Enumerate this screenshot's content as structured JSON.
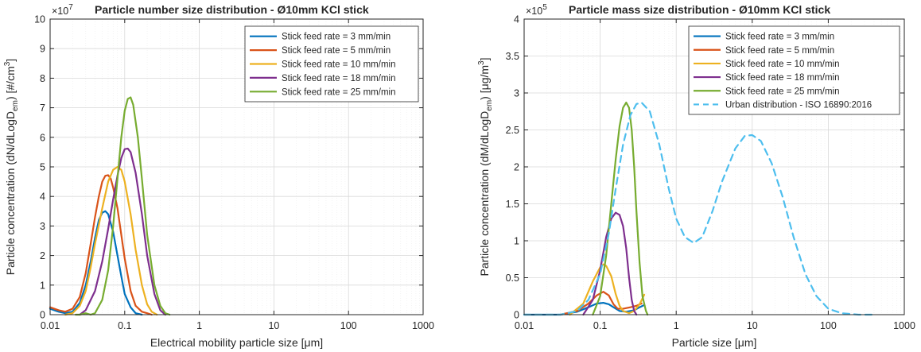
{
  "chart_data": [
    {
      "type": "line",
      "title": "Particle number size distribution - Ø10mm KCl stick",
      "xlabel": "Electrical mobility particle size [μm]",
      "ylabel": "Particle concentration (dN/dLogD",
      "ylabel_sub": "em",
      "ylabel_tail": ") [#/cm",
      "ylabel_sup": "3",
      "ylabel_end": "]",
      "xscale": "log",
      "xlim": [
        0.01,
        1000
      ],
      "ylim": [
        0,
        10
      ],
      "y_exponent_base": "×10",
      "y_exponent": "7",
      "x_ticks": [
        "0.01",
        "0.1",
        "1",
        "10",
        "100",
        "1000"
      ],
      "y_ticks": [
        "0",
        "1",
        "2",
        "3",
        "4",
        "5",
        "6",
        "7",
        "8",
        "9",
        "10"
      ],
      "grid": true,
      "legend_position": "top-right",
      "series": [
        {
          "name": "Stick feed rate = 3 mm/min",
          "color": "#0072BD",
          "points": [
            [
              0.01,
              0.2
            ],
            [
              0.013,
              0.1
            ],
            [
              0.016,
              0.05
            ],
            [
              0.02,
              0.1
            ],
            [
              0.025,
              0.4
            ],
            [
              0.03,
              1.0
            ],
            [
              0.035,
              1.8
            ],
            [
              0.04,
              2.6
            ],
            [
              0.045,
              3.2
            ],
            [
              0.05,
              3.45
            ],
            [
              0.055,
              3.5
            ],
            [
              0.06,
              3.4
            ],
            [
              0.07,
              2.8
            ],
            [
              0.08,
              2.0
            ],
            [
              0.09,
              1.3
            ],
            [
              0.1,
              0.7
            ],
            [
              0.12,
              0.25
            ],
            [
              0.14,
              0.05
            ],
            [
              0.17,
              0.0
            ]
          ]
        },
        {
          "name": "Stick feed rate = 5 mm/min",
          "color": "#D95319",
          "points": [
            [
              0.01,
              0.25
            ],
            [
              0.013,
              0.15
            ],
            [
              0.016,
              0.1
            ],
            [
              0.02,
              0.2
            ],
            [
              0.025,
              0.6
            ],
            [
              0.03,
              1.4
            ],
            [
              0.035,
              2.4
            ],
            [
              0.04,
              3.3
            ],
            [
              0.045,
              4.0
            ],
            [
              0.05,
              4.5
            ],
            [
              0.055,
              4.7
            ],
            [
              0.06,
              4.72
            ],
            [
              0.065,
              4.6
            ],
            [
              0.07,
              4.3
            ],
            [
              0.08,
              3.6
            ],
            [
              0.09,
              2.7
            ],
            [
              0.1,
              1.9
            ],
            [
              0.12,
              0.8
            ],
            [
              0.14,
              0.3
            ],
            [
              0.17,
              0.1
            ],
            [
              0.2,
              0.05
            ],
            [
              0.23,
              0.0
            ]
          ]
        },
        {
          "name": "Stick feed rate = 10 mm/min",
          "color": "#EDB120",
          "points": [
            [
              0.016,
              0.0
            ],
            [
              0.02,
              0.05
            ],
            [
              0.025,
              0.3
            ],
            [
              0.03,
              0.8
            ],
            [
              0.035,
              1.6
            ],
            [
              0.04,
              2.4
            ],
            [
              0.05,
              3.6
            ],
            [
              0.06,
              4.5
            ],
            [
              0.07,
              4.9
            ],
            [
              0.08,
              5.0
            ],
            [
              0.09,
              4.9
            ],
            [
              0.1,
              4.5
            ],
            [
              0.12,
              3.4
            ],
            [
              0.14,
              2.2
            ],
            [
              0.17,
              1.0
            ],
            [
              0.2,
              0.35
            ],
            [
              0.23,
              0.1
            ],
            [
              0.27,
              0.0
            ]
          ]
        },
        {
          "name": "Stick feed rate = 18 mm/min",
          "color": "#7E2F8E",
          "points": [
            [
              0.025,
              0.0
            ],
            [
              0.03,
              0.15
            ],
            [
              0.04,
              0.8
            ],
            [
              0.05,
              1.8
            ],
            [
              0.06,
              2.9
            ],
            [
              0.07,
              3.9
            ],
            [
              0.08,
              4.7
            ],
            [
              0.09,
              5.3
            ],
            [
              0.1,
              5.6
            ],
            [
              0.11,
              5.62
            ],
            [
              0.12,
              5.5
            ],
            [
              0.14,
              4.8
            ],
            [
              0.17,
              3.4
            ],
            [
              0.2,
              2.0
            ],
            [
              0.25,
              0.7
            ],
            [
              0.3,
              0.15
            ],
            [
              0.35,
              0.0
            ]
          ]
        },
        {
          "name": "Stick feed rate = 25 mm/min",
          "color": "#77AC30",
          "points": [
            [
              0.022,
              0.0
            ],
            [
              0.025,
              0.0
            ],
            [
              0.03,
              0.05
            ],
            [
              0.035,
              0.0
            ],
            [
              0.04,
              0.05
            ],
            [
              0.05,
              0.5
            ],
            [
              0.06,
              1.5
            ],
            [
              0.07,
              3.0
            ],
            [
              0.08,
              4.6
            ],
            [
              0.09,
              6.0
            ],
            [
              0.1,
              6.9
            ],
            [
              0.11,
              7.3
            ],
            [
              0.12,
              7.35
            ],
            [
              0.13,
              7.1
            ],
            [
              0.15,
              6.0
            ],
            [
              0.17,
              4.6
            ],
            [
              0.2,
              2.7
            ],
            [
              0.25,
              1.0
            ],
            [
              0.3,
              0.3
            ],
            [
              0.35,
              0.05
            ],
            [
              0.4,
              0.0
            ]
          ]
        }
      ]
    },
    {
      "type": "line",
      "title": "Particle mass size distribution - Ø10mm KCl stick",
      "xlabel": "Particle size [μm]",
      "ylabel": "Particle concentration (dM/dLogD",
      "ylabel_sub": "em",
      "ylabel_tail": ") [μg/m",
      "ylabel_sup": "3",
      "ylabel_end": "]",
      "xscale": "log",
      "xlim": [
        0.01,
        1000
      ],
      "ylim": [
        0,
        4
      ],
      "y_exponent_base": "×10",
      "y_exponent": "5",
      "x_ticks": [
        "0.01",
        "0.1",
        "1",
        "10",
        "100",
        "1000"
      ],
      "y_ticks": [
        "0",
        "0.5",
        "1",
        "1.5",
        "2",
        "2.5",
        "3",
        "3.5",
        "4"
      ],
      "grid": true,
      "legend_position": "top-right",
      "series": [
        {
          "name": "Stick feed rate = 3 mm/min",
          "color": "#0072BD",
          "points": [
            [
              0.01,
              0.0
            ],
            [
              0.03,
              0.0
            ],
            [
              0.05,
              0.04
            ],
            [
              0.07,
              0.1
            ],
            [
              0.09,
              0.15
            ],
            [
              0.11,
              0.16
            ],
            [
              0.13,
              0.14
            ],
            [
              0.15,
              0.1
            ],
            [
              0.18,
              0.05
            ],
            [
              0.22,
              0.04
            ],
            [
              0.28,
              0.06
            ],
            [
              0.33,
              0.1
            ],
            [
              0.38,
              0.13
            ]
          ]
        },
        {
          "name": "Stick feed rate = 5 mm/min",
          "color": "#D95319",
          "points": [
            [
              0.03,
              0.0
            ],
            [
              0.05,
              0.05
            ],
            [
              0.07,
              0.15
            ],
            [
              0.09,
              0.26
            ],
            [
              0.11,
              0.31
            ],
            [
              0.13,
              0.26
            ],
            [
              0.15,
              0.14
            ],
            [
              0.17,
              0.08
            ],
            [
              0.2,
              0.08
            ],
            [
              0.25,
              0.1
            ],
            [
              0.3,
              0.12
            ],
            [
              0.35,
              0.15
            ]
          ]
        },
        {
          "name": "Stick feed rate = 10 mm/min",
          "color": "#EDB120",
          "points": [
            [
              0.04,
              0.0
            ],
            [
              0.06,
              0.15
            ],
            [
              0.08,
              0.45
            ],
            [
              0.1,
              0.64
            ],
            [
              0.11,
              0.68
            ],
            [
              0.12,
              0.66
            ],
            [
              0.14,
              0.52
            ],
            [
              0.16,
              0.28
            ],
            [
              0.18,
              0.12
            ],
            [
              0.2,
              0.05
            ],
            [
              0.24,
              0.02
            ],
            [
              0.28,
              0.05
            ],
            [
              0.33,
              0.14
            ],
            [
              0.38,
              0.27
            ]
          ]
        },
        {
          "name": "Stick feed rate = 18 mm/min",
          "color": "#7E2F8E",
          "points": [
            [
              0.06,
              0.0
            ],
            [
              0.08,
              0.2
            ],
            [
              0.1,
              0.6
            ],
            [
              0.12,
              1.05
            ],
            [
              0.14,
              1.3
            ],
            [
              0.16,
              1.38
            ],
            [
              0.18,
              1.35
            ],
            [
              0.2,
              1.2
            ],
            [
              0.22,
              0.9
            ],
            [
              0.24,
              0.5
            ],
            [
              0.26,
              0.2
            ],
            [
              0.28,
              0.05
            ],
            [
              0.3,
              0.0
            ]
          ]
        },
        {
          "name": "Stick feed rate = 25 mm/min",
          "color": "#77AC30",
          "points": [
            [
              0.08,
              0.0
            ],
            [
              0.1,
              0.25
            ],
            [
              0.12,
              0.8
            ],
            [
              0.14,
              1.5
            ],
            [
              0.16,
              2.1
            ],
            [
              0.18,
              2.55
            ],
            [
              0.2,
              2.8
            ],
            [
              0.22,
              2.87
            ],
            [
              0.24,
              2.8
            ],
            [
              0.26,
              2.5
            ],
            [
              0.28,
              2.0
            ],
            [
              0.3,
              1.4
            ],
            [
              0.33,
              0.7
            ],
            [
              0.36,
              0.25
            ],
            [
              0.4,
              0.05
            ],
            [
              0.42,
              0.0
            ]
          ]
        },
        {
          "name": "Urban distribution - ISO 16890:2016",
          "color": "#4DBEEE",
          "dashed": true,
          "points": [
            [
              0.01,
              0.0
            ],
            [
              0.03,
              0.0
            ],
            [
              0.05,
              0.05
            ],
            [
              0.07,
              0.2
            ],
            [
              0.1,
              0.55
            ],
            [
              0.13,
              1.1
            ],
            [
              0.16,
              1.7
            ],
            [
              0.2,
              2.3
            ],
            [
              0.25,
              2.7
            ],
            [
              0.3,
              2.85
            ],
            [
              0.35,
              2.87
            ],
            [
              0.45,
              2.75
            ],
            [
              0.6,
              2.3
            ],
            [
              0.8,
              1.7
            ],
            [
              1.0,
              1.3
            ],
            [
              1.3,
              1.05
            ],
            [
              1.7,
              0.97
            ],
            [
              2.2,
              1.05
            ],
            [
              3.0,
              1.4
            ],
            [
              4.0,
              1.8
            ],
            [
              6.0,
              2.25
            ],
            [
              8.0,
              2.42
            ],
            [
              10.0,
              2.43
            ],
            [
              13.0,
              2.35
            ],
            [
              18.0,
              2.05
            ],
            [
              25.0,
              1.6
            ],
            [
              35.0,
              1.05
            ],
            [
              50.0,
              0.55
            ],
            [
              70.0,
              0.25
            ],
            [
              100.0,
              0.08
            ],
            [
              150.0,
              0.02
            ],
            [
              250.0,
              0.0
            ],
            [
              400.0,
              0.0
            ]
          ]
        }
      ]
    }
  ]
}
